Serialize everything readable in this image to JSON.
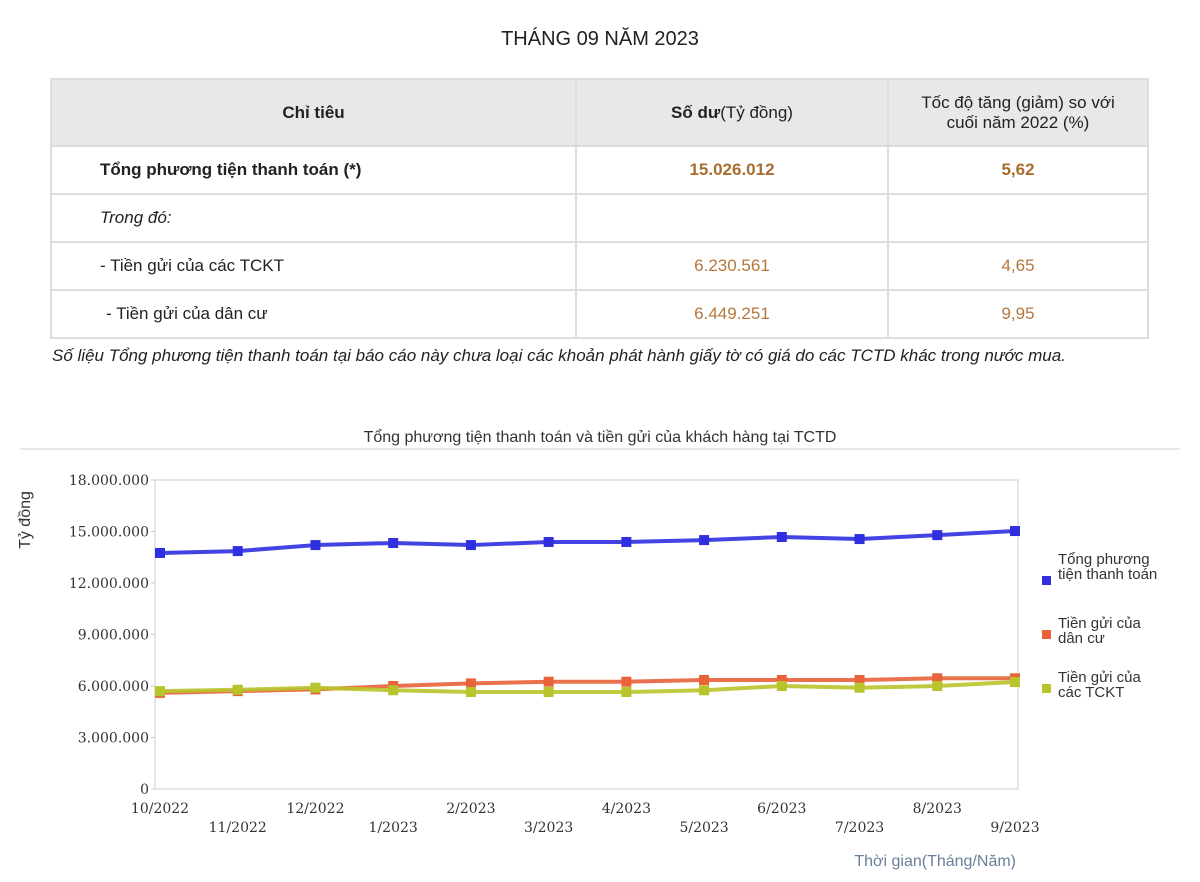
{
  "title": "THÁNG 09 NĂM 2023",
  "table": {
    "header": {
      "indicator": "Chỉ tiêu",
      "balance": "Số dư",
      "balance_unit": "(Tỷ đồng)",
      "growth": "Tốc độ tăng (giảm) so với cuối năm 2022 (%)"
    },
    "rows": [
      [
        "Tổng phương tiện thanh toán (*)",
        "15.026.012",
        "5,62"
      ],
      [
        "Trong đó:"
      ],
      [
        "- Tiền gửi của các TCKT",
        "6.230.561",
        "4,65"
      ],
      [
        "- Tiền gửi của dân cư",
        "6.449.251",
        "9,95"
      ]
    ]
  },
  "note": "Số liệu Tổng phương tiện thanh toán tại báo cáo này chưa loại các khoản phát hành giấy tờ có giá do các TCTD khác trong nước mua.",
  "chart_data": {
    "type": "line",
    "title": "Tổng phương tiện thanh toán và tiền gửi của khách hàng tại TCTD",
    "y_label": "Tỷ đồng",
    "x_label": "Thời gian(Tháng/Năm)",
    "categories": [
      "10/2022",
      "11/2022",
      "12/2022",
      "1/2023",
      "2/2023",
      "3/2023",
      "4/2023",
      "5/2023",
      "6/2023",
      "7/2023",
      "8/2023",
      "9/2023"
    ],
    "ylim": [
      0,
      18000000
    ],
    "yticks": [
      0,
      {
        "value": 3000000,
        "label": "3.000.000"
      },
      {
        "value": 6000000,
        "label": "6.000.000"
      },
      {
        "value": 9000000,
        "label": "9.000.000"
      },
      {
        "value": 12000000,
        "label": "12.000.000"
      },
      {
        "value": 15000000,
        "label": "15.000.000"
      },
      {
        "value": 18000000,
        "label": "18.000.000"
      }
    ],
    "grid": false,
    "legend": "right",
    "series": [
      {
        "name": "Tổng phương tiện thanh toán",
        "color": "#2f2fe0",
        "values": [
          13750000,
          13860000,
          14210000,
          14330000,
          14210000,
          14390000,
          14390000,
          14500000,
          14680000,
          14560000,
          14790000,
          15026012
        ]
      },
      {
        "name": "Tiền gửi của dân cư",
        "color": "#e8623a",
        "values": [
          5600000,
          5700000,
          5800000,
          6000000,
          6150000,
          6250000,
          6250000,
          6350000,
          6350000,
          6350000,
          6450000,
          6449251
        ]
      },
      {
        "name": "Tiền gửi của các TCKT",
        "color": "#b8c42c",
        "values": [
          5700000,
          5780000,
          5900000,
          5750000,
          5650000,
          5650000,
          5650000,
          5750000,
          6000000,
          5900000,
          6000000,
          6230561
        ]
      }
    ]
  }
}
